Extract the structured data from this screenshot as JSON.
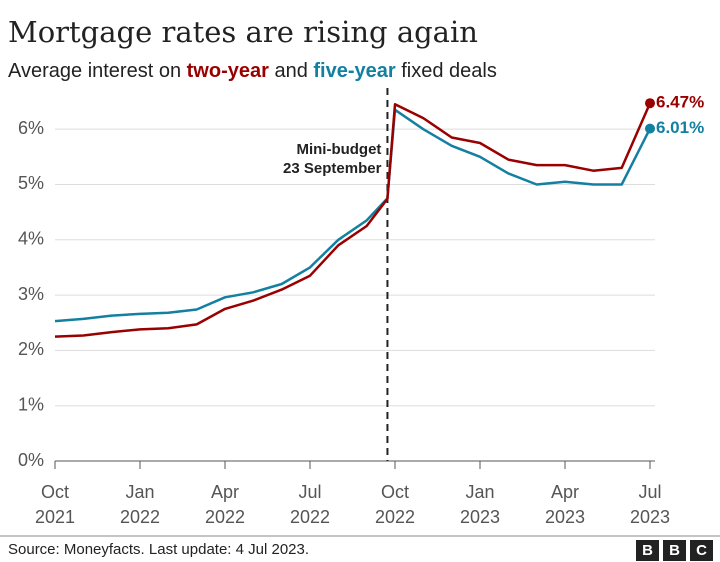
{
  "chart_data": {
    "type": "line",
    "title": "Mortgage rates are rising again",
    "subtitle": [
      "Average interest on ",
      "two-year",
      " and ",
      "five-year",
      " fixed deals"
    ],
    "x": [
      "2021-10",
      "2021-11",
      "2021-12",
      "2022-01",
      "2022-02",
      "2022-03",
      "2022-04",
      "2022-05",
      "2022-06",
      "2022-07",
      "2022-08",
      "2022-09",
      "2022-09-23",
      "2022-10",
      "2022-11",
      "2022-12",
      "2023-01",
      "2023-02",
      "2023-03",
      "2023-04",
      "2023-05",
      "2023-06",
      "2023-07"
    ],
    "series": [
      {
        "name": "two-year",
        "color": "#990000",
        "values": [
          2.25,
          2.27,
          2.33,
          2.38,
          2.4,
          2.47,
          2.75,
          2.9,
          3.1,
          3.35,
          3.9,
          4.25,
          4.74,
          6.45,
          6.2,
          5.85,
          5.75,
          5.45,
          5.35,
          5.35,
          5.25,
          5.3,
          6.47
        ],
        "value_labels": [
          null,
          null,
          null,
          null,
          null,
          null,
          null,
          null,
          null,
          null,
          null,
          null,
          null,
          null,
          null,
          null,
          null,
          null,
          null,
          null,
          null,
          null,
          "6.47%"
        ]
      },
      {
        "name": "five-year",
        "color": "#1380a1",
        "values": [
          2.53,
          2.57,
          2.63,
          2.66,
          2.68,
          2.74,
          2.96,
          3.05,
          3.2,
          3.5,
          4.0,
          4.35,
          4.75,
          6.35,
          6.0,
          5.7,
          5.5,
          5.2,
          5.0,
          5.05,
          5.0,
          5.0,
          6.01
        ],
        "value_labels": [
          null,
          null,
          null,
          null,
          null,
          null,
          null,
          null,
          null,
          null,
          null,
          null,
          null,
          null,
          null,
          null,
          null,
          null,
          null,
          null,
          null,
          null,
          "6.01%"
        ]
      }
    ],
    "xlim": [
      "2021-10",
      "2023-07"
    ],
    "xticks": [
      {
        "value": "2021-10",
        "label": [
          "Oct",
          "2021"
        ]
      },
      {
        "value": "2022-01",
        "label": [
          "Jan",
          "2022"
        ]
      },
      {
        "value": "2022-04",
        "label": [
          "Apr",
          "2022"
        ]
      },
      {
        "value": "2022-07",
        "label": [
          "Jul",
          "2022"
        ]
      },
      {
        "value": "2022-10",
        "label": [
          "Oct",
          "2022"
        ]
      },
      {
        "value": "2023-01",
        "label": [
          "Jan",
          "2023"
        ]
      },
      {
        "value": "2023-04",
        "label": [
          "Apr",
          "2023"
        ]
      },
      {
        "value": "2023-07",
        "label": [
          "Jul",
          "2023"
        ]
      }
    ],
    "ylim": [
      0,
      6.6
    ],
    "yticks": [
      {
        "value": 0,
        "label": "0%"
      },
      {
        "value": 1,
        "label": "1%"
      },
      {
        "value": 2,
        "label": "2%"
      },
      {
        "value": 3,
        "label": "3%"
      },
      {
        "value": 4,
        "label": "4%"
      },
      {
        "value": 5,
        "label": "5%"
      },
      {
        "value": 6,
        "label": "6%"
      }
    ],
    "grid": true,
    "annotation": {
      "text": [
        "Mini-budget",
        "23 September"
      ],
      "x": "2022-09-23"
    },
    "source": "Source: Moneyfacts. Last update: 4 Jul 2023.",
    "logo": [
      "B",
      "B",
      "C"
    ]
  }
}
